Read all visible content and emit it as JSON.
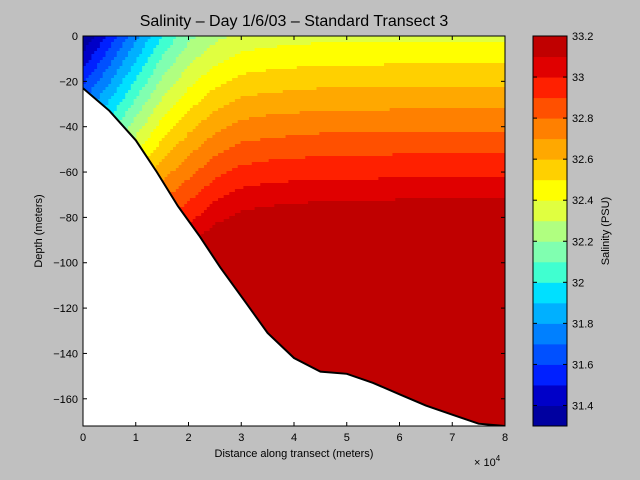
{
  "chart_data": {
    "type": "heatmap",
    "subtype": "filled-contour",
    "title": "Salinity – Day 1/6/03 – Standard Transect 3",
    "xlabel": "Distance along transect (meters)",
    "ylabel": "Depth (meters)",
    "x_exponent_label": "× 10",
    "x_exponent_power": "4",
    "x_scale_factor": 10000,
    "x_tick_values": [
      0,
      1,
      2,
      3,
      4,
      5,
      6,
      7,
      8
    ],
    "x_tick_labels": [
      "0",
      "1",
      "2",
      "3",
      "4",
      "5",
      "6",
      "7",
      "8"
    ],
    "y_tick_values": [
      0,
      -20,
      -40,
      -60,
      -80,
      -100,
      -120,
      -140,
      -160
    ],
    "y_tick_labels": [
      "0",
      "−20",
      "−40",
      "−60",
      "−80",
      "−100",
      "−120",
      "−140",
      "−160"
    ],
    "xlim": [
      0,
      80000
    ],
    "ylim": [
      -172,
      0
    ],
    "colorbar": {
      "label": "Salinity (PSU)",
      "range": [
        31.3,
        33.2
      ],
      "tick_values": [
        31.4,
        31.6,
        31.8,
        32,
        32.2,
        32.4,
        32.6,
        32.8,
        33,
        33.2
      ],
      "tick_labels": [
        "31.4",
        "31.6",
        "31.8",
        "32",
        "32.2",
        "32.4",
        "32.6",
        "32.8",
        "33",
        "33.2"
      ],
      "levels": [
        31.3,
        31.4,
        31.5,
        31.6,
        31.7,
        31.8,
        31.9,
        32.0,
        32.1,
        32.2,
        32.3,
        32.4,
        32.5,
        32.6,
        32.7,
        32.8,
        32.9,
        33.0,
        33.1,
        33.2
      ],
      "colors": [
        "#0000a0",
        "#0000c8",
        "#0020ff",
        "#0050ff",
        "#0080ff",
        "#00b0ff",
        "#00e0ff",
        "#40ffd0",
        "#80ffb0",
        "#b0ff80",
        "#e0ff40",
        "#ffff00",
        "#ffd000",
        "#ffa800",
        "#ff8000",
        "#ff5000",
        "#ff2000",
        "#e00000",
        "#c00000"
      ]
    },
    "bathymetry": {
      "x": [
        0,
        5000,
        10000,
        14000,
        18000,
        22000,
        26000,
        31000,
        35000,
        40000,
        45000,
        50000,
        55000,
        60000,
        65000,
        70000,
        75000,
        80000
      ],
      "depth": [
        -23,
        -33,
        -46,
        -60,
        -75,
        -88,
        -102,
        -118,
        -131,
        -142,
        -148,
        -149,
        -153,
        -158,
        -163,
        -167,
        -171,
        -172
      ]
    },
    "salinity_field": {
      "x": [
        0,
        5000,
        10000,
        15000,
        20000,
        25000,
        30000,
        35000,
        40000,
        45000,
        50000,
        55000,
        60000,
        65000,
        70000,
        75000,
        80000
      ],
      "depth": [
        0,
        -10,
        -20,
        -30,
        -40,
        -50,
        -60,
        -70,
        -80,
        -90,
        -100,
        -110,
        -120,
        -130,
        -140,
        -150,
        -160,
        -172
      ],
      "values": [
        [
          31.3,
          31.53,
          31.77,
          32.0,
          32.17,
          32.27,
          32.33,
          32.35,
          32.36,
          32.37,
          32.37,
          32.37,
          32.38,
          32.38,
          32.38,
          32.38,
          32.38
        ],
        [
          31.44,
          31.66,
          31.89,
          32.11,
          32.27,
          32.37,
          32.43,
          32.45,
          32.46,
          32.47,
          32.47,
          32.47,
          32.48,
          32.48,
          32.48,
          32.48,
          32.48
        ],
        [
          31.58,
          31.79,
          32.01,
          32.22,
          32.37,
          32.47,
          32.53,
          32.55,
          32.56,
          32.57,
          32.57,
          32.57,
          32.58,
          32.58,
          32.58,
          32.58,
          32.58
        ],
        [
          31.72,
          31.92,
          32.13,
          32.33,
          32.47,
          32.57,
          32.63,
          32.65,
          32.66,
          32.67,
          32.67,
          32.67,
          32.68,
          32.68,
          32.68,
          32.68,
          32.68
        ],
        [
          31.86,
          32.05,
          32.25,
          32.44,
          32.57,
          32.67,
          32.73,
          32.75,
          32.76,
          32.77,
          32.77,
          32.77,
          32.78,
          32.78,
          32.78,
          32.78,
          32.78
        ],
        [
          32.0,
          32.18,
          32.37,
          32.55,
          32.67,
          32.77,
          32.83,
          32.85,
          32.86,
          32.87,
          32.87,
          32.87,
          32.88,
          32.88,
          32.88,
          32.88,
          32.88
        ],
        [
          32.14,
          32.31,
          32.49,
          32.66,
          32.77,
          32.87,
          32.93,
          32.95,
          32.96,
          32.97,
          32.97,
          32.97,
          32.98,
          32.98,
          32.98,
          32.98,
          32.98
        ],
        [
          32.28,
          32.44,
          32.61,
          32.77,
          32.87,
          32.97,
          33.03,
          33.05,
          33.06,
          33.07,
          33.07,
          33.07,
          33.08,
          33.08,
          33.08,
          33.08,
          33.08
        ],
        [
          32.42,
          32.57,
          32.73,
          32.88,
          32.97,
          33.07,
          33.13,
          33.15,
          33.16,
          33.17,
          33.17,
          33.17,
          33.18,
          33.18,
          33.18,
          33.18,
          33.18
        ],
        [
          32.56,
          32.7,
          32.85,
          32.99,
          33.07,
          33.17,
          33.19,
          33.19,
          33.19,
          33.19,
          33.19,
          33.19,
          33.19,
          33.19,
          33.19,
          33.19,
          33.19
        ],
        [
          32.7,
          32.83,
          32.97,
          33.1,
          33.17,
          33.19,
          33.19,
          33.19,
          33.19,
          33.19,
          33.19,
          33.19,
          33.19,
          33.19,
          33.19,
          33.19,
          33.19
        ],
        [
          32.84,
          32.96,
          33.09,
          33.19,
          33.19,
          33.19,
          33.19,
          33.19,
          33.19,
          33.19,
          33.19,
          33.19,
          33.19,
          33.19,
          33.19,
          33.19,
          33.19
        ],
        [
          32.98,
          33.09,
          33.19,
          33.19,
          33.19,
          33.19,
          33.19,
          33.19,
          33.19,
          33.19,
          33.19,
          33.19,
          33.19,
          33.19,
          33.19,
          33.19,
          33.19
        ],
        [
          33.12,
          33.19,
          33.19,
          33.19,
          33.19,
          33.19,
          33.19,
          33.19,
          33.19,
          33.19,
          33.19,
          33.19,
          33.19,
          33.19,
          33.19,
          33.19,
          33.19
        ],
        [
          33.19,
          33.19,
          33.19,
          33.19,
          33.19,
          33.19,
          33.19,
          33.19,
          33.19,
          33.19,
          33.19,
          33.19,
          33.19,
          33.19,
          33.19,
          33.19,
          33.19
        ],
        [
          33.19,
          33.19,
          33.19,
          33.19,
          33.19,
          33.19,
          33.19,
          33.19,
          33.19,
          33.19,
          33.19,
          33.19,
          33.19,
          33.19,
          33.19,
          33.19,
          33.19
        ],
        [
          33.19,
          33.19,
          33.19,
          33.19,
          33.19,
          33.19,
          33.19,
          33.19,
          33.19,
          33.19,
          33.19,
          33.19,
          33.19,
          33.19,
          33.19,
          33.19,
          33.19
        ],
        [
          33.19,
          33.19,
          33.19,
          33.19,
          33.19,
          33.19,
          33.19,
          33.19,
          33.19,
          33.19,
          33.19,
          33.19,
          33.19,
          33.19,
          33.19,
          33.19,
          33.19
        ]
      ]
    },
    "colors": {
      "background": "#c0c0c0",
      "seafloor": "#ffffff",
      "seafloor_line": "#000000"
    }
  }
}
